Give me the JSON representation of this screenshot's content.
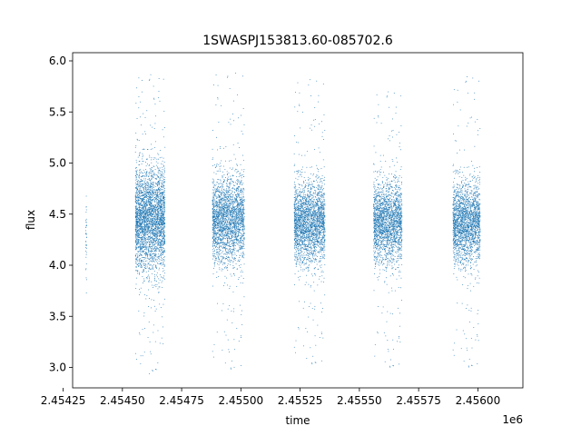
{
  "chart_data": {
    "type": "scatter",
    "title": "1SWASPJ153813.60-085702.6",
    "xlabel": "time",
    "ylabel": "flux",
    "x_offset_label": "1e6",
    "xlim": [
      2454290,
      2456190
    ],
    "ylim": [
      2.8,
      6.08
    ],
    "xticks": [
      2454250,
      2454500,
      2454750,
      2455000,
      2455250,
      2455500,
      2455750,
      2456000
    ],
    "xtick_labels": [
      "2.45425",
      "2.45450",
      "2.45475",
      "2.45500",
      "2.45525",
      "2.45550",
      "2.45575",
      "2.45600"
    ],
    "yticks": [
      3.0,
      3.5,
      4.0,
      4.5,
      5.0,
      5.5,
      6.0
    ],
    "ytick_labels": [
      "3.0",
      "3.5",
      "4.0",
      "4.5",
      "5.0",
      "5.5",
      "6.0"
    ],
    "grid": false,
    "marker_color": "#1f77b4",
    "segments": [
      {
        "x_range": [
          2454345,
          2454350
        ],
        "center": 4.25,
        "spread": 0.35,
        "min": 3.73,
        "max": 4.87,
        "count": 40
      },
      {
        "x_range": [
          2454555,
          2454680
        ],
        "center": 4.45,
        "spread": 0.42,
        "min": 2.93,
        "max": 5.9,
        "count": 3200
      },
      {
        "x_range": [
          2454880,
          2455015
        ],
        "center": 4.45,
        "spread": 0.35,
        "min": 2.95,
        "max": 5.93,
        "count": 2500
      },
      {
        "x_range": [
          2455225,
          2455355
        ],
        "center": 4.42,
        "spread": 0.33,
        "min": 3.0,
        "max": 5.85,
        "count": 2500
      },
      {
        "x_range": [
          2455560,
          2455680
        ],
        "center": 4.42,
        "spread": 0.33,
        "min": 2.97,
        "max": 5.73,
        "count": 2200
      },
      {
        "x_range": [
          2455895,
          2456010
        ],
        "center": 4.42,
        "spread": 0.33,
        "min": 2.97,
        "max": 5.88,
        "count": 2200
      }
    ]
  }
}
